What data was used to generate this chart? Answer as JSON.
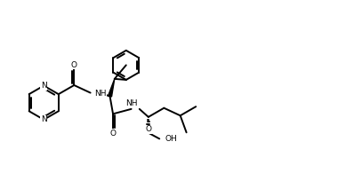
{
  "background": "#ffffff",
  "line_color": "#000000",
  "line_width": 1.4,
  "figsize": [
    3.89,
    2.13
  ],
  "dpi": 100,
  "xlim": [
    0,
    10.5
  ],
  "ylim": [
    0,
    5.7
  ]
}
